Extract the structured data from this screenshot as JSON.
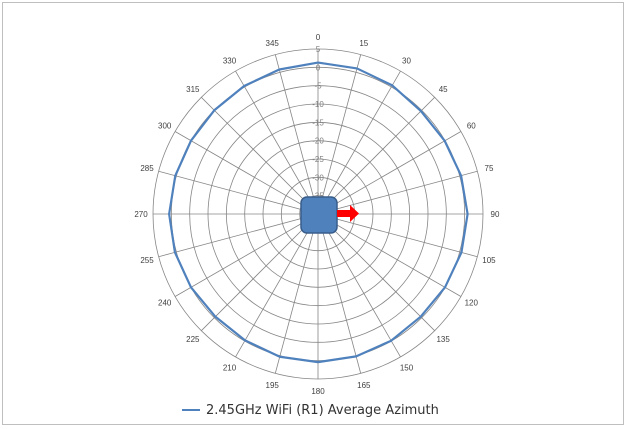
{
  "chart_data": {
    "type": "polar-line",
    "title": "",
    "angle_ticks": [
      "0",
      "15",
      "30",
      "45",
      "60",
      "75",
      "90",
      "105",
      "120",
      "135",
      "150",
      "165",
      "180",
      "195",
      "210",
      "225",
      "240",
      "255",
      "270",
      "285",
      "300",
      "315",
      "330",
      "345"
    ],
    "radial_ticks": [
      "5",
      "0",
      "-5",
      "-10",
      "-15",
      "-20",
      "-25",
      "-30",
      "-35",
      "-40"
    ],
    "radial_range": [
      -40,
      5
    ],
    "grid": true,
    "legend_position": "bottom",
    "series": [
      {
        "name": "2.45GHz WiFi (R1) Average Azimuth",
        "color": "#4f81bd",
        "angles": [
          0,
          15,
          30,
          45,
          60,
          75,
          90,
          105,
          120,
          135,
          150,
          165,
          180,
          195,
          210,
          225,
          240,
          255,
          270,
          285,
          300,
          315,
          330,
          345
        ],
        "values": [
          1.3,
          1.1,
          0.5,
          -0.3,
          -0.1,
          0.4,
          0.8,
          0.5,
          0.0,
          -0.4,
          -0.1,
          0.2,
          0.4,
          0.3,
          -0.2,
          -0.4,
          0.0,
          0.4,
          0.6,
          0.3,
          0.0,
          0.0,
          0.3,
          0.8
        ]
      }
    ]
  },
  "legend_label": "2.45GHz WiFi (R1) Average Azimuth",
  "device_color": "#4f81bd",
  "arrow_color": "#ff0000"
}
